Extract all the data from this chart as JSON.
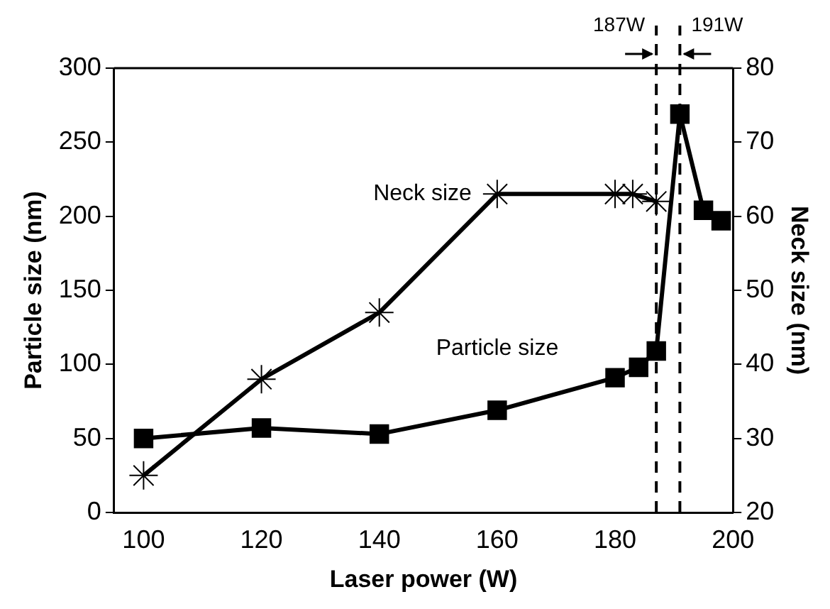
{
  "chart_data": {
    "type": "line",
    "xlabel": "Laser power (W)",
    "ylabel": "Particle size (nm)",
    "y2label": "Neck size (nm)",
    "xlim": [
      95,
      200
    ],
    "xticks": [
      100,
      120,
      140,
      160,
      180,
      200
    ],
    "ylim": [
      0,
      300
    ],
    "yticks": [
      0,
      50,
      100,
      150,
      200,
      250,
      300
    ],
    "y2lim": [
      20,
      80
    ],
    "y2ticks": [
      20,
      30,
      40,
      50,
      60,
      70,
      80
    ],
    "series": [
      {
        "name": "Neck size",
        "color": "#000000",
        "marker": "cross",
        "axis": "y2",
        "x": [
          100,
          120,
          140,
          160,
          180,
          183,
          187
        ],
        "values": [
          25,
          38,
          47,
          63,
          63,
          63,
          62
        ]
      },
      {
        "name": "Particle size",
        "color": "#000000",
        "marker": "square",
        "axis": "y",
        "x": [
          100,
          120,
          140,
          160,
          180,
          184,
          187,
          191,
          195,
          198
        ],
        "values": [
          50,
          57,
          53,
          69,
          91,
          98,
          109,
          269,
          204,
          197
        ]
      }
    ],
    "ref_lines": [
      {
        "axis": "x",
        "value": 187,
        "label": "187W",
        "line_style": "dashed",
        "color": "#000000"
      },
      {
        "axis": "x",
        "value": 191,
        "label": "191W",
        "line_style": "dashed",
        "color": "#000000"
      }
    ],
    "grid": false,
    "legend": false,
    "line_style": "solid"
  }
}
